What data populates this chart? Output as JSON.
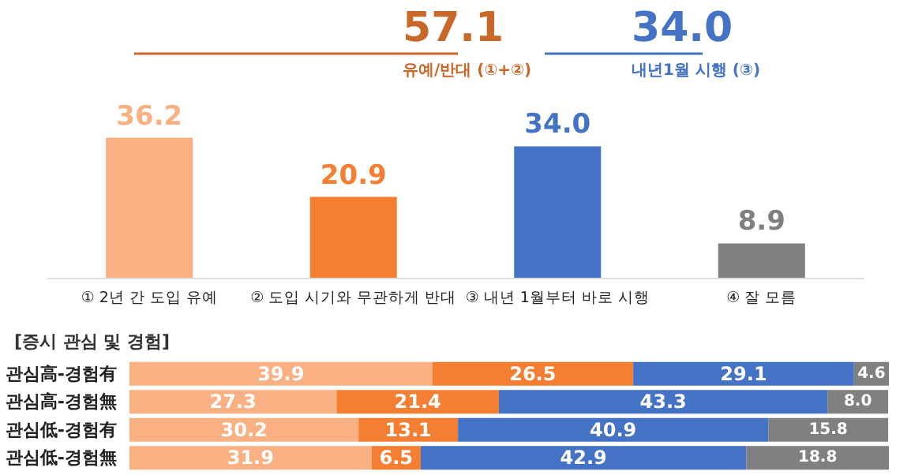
{
  "chart_data": [
    {
      "type": "bar",
      "categories": [
        "① 2년 간 도입 유예",
        "② 도입 시기와 무관하게 반대",
        "③ 내년 1월부터 바로 시행",
        "④ 잘 모름"
      ],
      "values": [
        36.2,
        20.9,
        34.0,
        8.9
      ],
      "value_labels": [
        "36.2",
        "20.9",
        "34.0",
        "8.9"
      ],
      "colors": [
        "#f9b183",
        "#f47f32",
        "#4472c4",
        "#808080"
      ],
      "tick_labels": "x",
      "annotations": [
        "57.1",
        "유예/반대 (①+②)",
        "34.0",
        "내년1월 시행 (③)"
      ]
    },
    {
      "type": "bar",
      "orientation": "horizontal",
      "stacked": true,
      "title": "[증시 관심 및 경험]",
      "categories": [
        "관심高-경험有",
        "관심高-경험無",
        "관심低-경험有",
        "관심低-경험無"
      ],
      "tick_labels": "y",
      "series": [
        {
          "color": "#f9b183",
          "values": [
            39.9,
            27.3,
            30.2,
            31.9
          ],
          "value_labels": [
            "39.9",
            "27.3",
            "30.2",
            "31.9"
          ]
        },
        {
          "color": "#f47f32",
          "values": [
            26.5,
            21.4,
            13.1,
            6.5
          ],
          "value_labels": [
            "26.5",
            "21.4",
            "13.1",
            "6.5"
          ]
        },
        {
          "color": "#4472c4",
          "values": [
            29.1,
            43.3,
            40.9,
            42.9
          ],
          "value_labels": [
            "29.1",
            "43.3",
            "40.9",
            "42.9"
          ]
        },
        {
          "color": "#808080",
          "values": [
            4.6,
            8.0,
            15.8,
            18.8
          ],
          "value_labels": [
            "4.6",
            "8.0",
            "15.8",
            "18.8"
          ]
        }
      ]
    }
  ]
}
